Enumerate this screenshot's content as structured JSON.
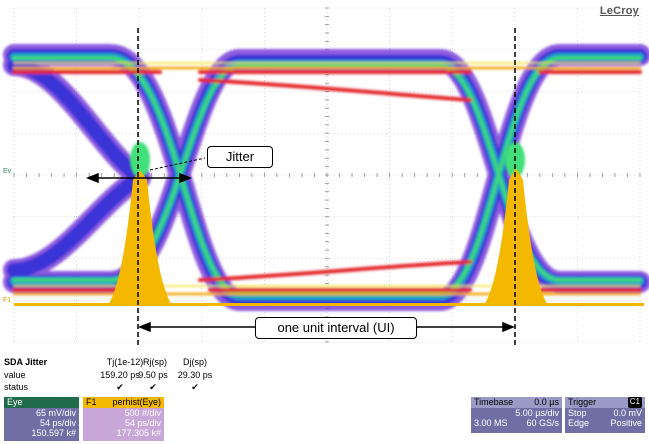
{
  "brand": "LeCroy",
  "annotations": {
    "jitter": "Jitter",
    "ui": "one unit interval (UI)"
  },
  "markers": {
    "left_level": "Ev",
    "left_bottom": "F1"
  },
  "sda": {
    "title": "SDA Jitter",
    "columns": [
      "Tj(1e-12)",
      "Rj(sp)",
      "Dj(sp)"
    ],
    "row_labels": [
      "value",
      "status"
    ],
    "values": [
      "159.20 ps",
      "9.50 ps",
      "29.30 ps"
    ],
    "status": [
      "✔",
      "✔",
      "✔"
    ]
  },
  "eye_trace": {
    "label": "Eye",
    "lines": [
      "65 mV/div",
      "54 ps/div",
      "150.597 k#"
    ],
    "color": "#2e8b57"
  },
  "f1_trace": {
    "id": "F1",
    "label": "perhist(Eye)",
    "lines": [
      "500 #/div",
      "54 ps/div",
      "177.305 k#"
    ],
    "color": "#f5b800"
  },
  "timebase": {
    "title": "Timebase",
    "offset": "0.0 µs",
    "rows": [
      [
        "",
        "5.00 µs/div"
      ],
      [
        "3.00 MS",
        "60 GS/s"
      ]
    ]
  },
  "trigger": {
    "title": "Trigger",
    "channel": "C1",
    "rows": [
      [
        "Stop",
        "0.0 mV"
      ],
      [
        "Edge",
        "Positive"
      ]
    ]
  }
}
